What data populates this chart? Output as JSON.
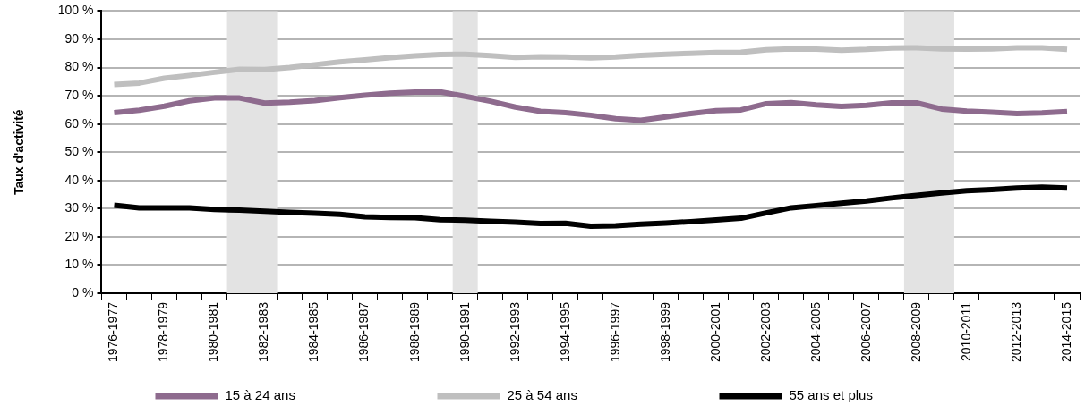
{
  "chart_data": {
    "type": "line",
    "ylabel": "Taux d'activité",
    "categories": [
      "1976-1977",
      null,
      "1978-1979",
      null,
      "1980-1981",
      null,
      "1982-1983",
      null,
      "1984-1985",
      null,
      "1986-1987",
      null,
      "1988-1989",
      null,
      "1990-1991",
      null,
      "1992-1993",
      null,
      "1994-1995",
      null,
      "1996-1997",
      null,
      "1998-1999",
      null,
      "2000-2001",
      null,
      "2002-2003",
      null,
      "2004-2005",
      null,
      "2006-2007",
      null,
      "2008-2009",
      null,
      "2010-2011",
      null,
      "2012-2013",
      null,
      "2014-2015"
    ],
    "ylim": [
      0,
      100
    ],
    "yticks": [
      {
        "value": 0,
        "label": "0 %"
      },
      {
        "value": 10,
        "label": "10 %"
      },
      {
        "value": 20,
        "label": "20 %"
      },
      {
        "value": 30,
        "label": "30 %"
      },
      {
        "value": 40,
        "label": "40 %"
      },
      {
        "value": 50,
        "label": "50 %"
      },
      {
        "value": 60,
        "label": "60 %"
      },
      {
        "value": 70,
        "label": "70 %"
      },
      {
        "value": 80,
        "label": "80 %"
      },
      {
        "value": 90,
        "label": "90 %"
      },
      {
        "value": 100,
        "label": "100 %"
      }
    ],
    "series": [
      {
        "name": "15 à 24 ans",
        "color": "#8e6b8e",
        "values": [
          64.0,
          64.9,
          66.3,
          68.2,
          69.2,
          69.2,
          67.4,
          67.7,
          68.3,
          69.3,
          70.2,
          70.9,
          71.3,
          71.4,
          69.8,
          68.1,
          66.0,
          64.5,
          64.0,
          63.1,
          61.9,
          61.3,
          62.5,
          63.7,
          64.7,
          65.0,
          67.2,
          67.6,
          66.8,
          66.2,
          66.6,
          67.5,
          67.5,
          65.3,
          64.6,
          64.2,
          63.7,
          63.9,
          64.4
        ]
      },
      {
        "name": "25 à 54 ans",
        "color": "#bfbfbf",
        "values": [
          74.0,
          74.5,
          76.2,
          77.2,
          78.3,
          79.4,
          79.3,
          80.0,
          81.0,
          82.0,
          82.7,
          83.5,
          84.1,
          84.6,
          84.7,
          84.2,
          83.6,
          83.8,
          83.7,
          83.4,
          83.7,
          84.3,
          84.7,
          85.0,
          85.3,
          85.4,
          86.3,
          86.6,
          86.5,
          86.1,
          86.4,
          86.9,
          87.0,
          86.6,
          86.5,
          86.6,
          87.0,
          87.0,
          86.4
        ]
      },
      {
        "name": "55 ans et plus",
        "color": "#000000",
        "values": [
          31.2,
          30.3,
          30.3,
          30.3,
          29.7,
          29.5,
          29.1,
          28.7,
          28.4,
          28.0,
          27.1,
          26.9,
          26.8,
          26.1,
          25.9,
          25.5,
          25.2,
          24.7,
          24.8,
          23.8,
          23.9,
          24.5,
          24.9,
          25.4,
          26.0,
          26.6,
          28.5,
          30.3,
          31.1,
          31.9,
          32.7,
          33.8,
          34.7,
          35.6,
          36.4,
          36.8,
          37.3,
          37.6,
          37.3
        ]
      }
    ],
    "grid": "y",
    "legend": "bottom",
    "marker": "none",
    "line_style": "solid"
  }
}
